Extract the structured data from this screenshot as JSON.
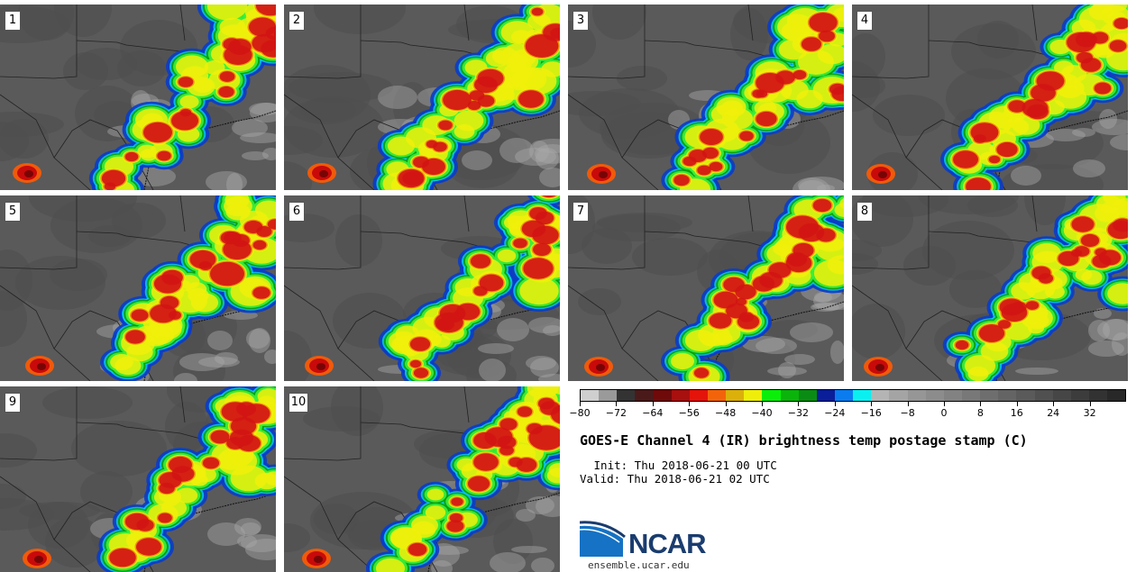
{
  "panels": [
    {
      "label": "1"
    },
    {
      "label": "2"
    },
    {
      "label": "3"
    },
    {
      "label": "4"
    },
    {
      "label": "5"
    },
    {
      "label": "6"
    },
    {
      "label": "7"
    },
    {
      "label": "8"
    },
    {
      "label": "9"
    },
    {
      "label": "10"
    }
  ],
  "colorbar": {
    "colors": [
      "#cfcfcf",
      "#9a9a9a",
      "#333333",
      "#4a1a1a",
      "#6e0a0a",
      "#a80f0f",
      "#e4140a",
      "#f3640a",
      "#dcb00a",
      "#eeee0a",
      "#0aee0a",
      "#0ab40a",
      "#0a8c14",
      "#0a1e9a",
      "#0a7cf0",
      "#0af0f0",
      "#b4b4b4",
      "#a4a4a4",
      "#969696",
      "#8c8c8c",
      "#828282",
      "#787878",
      "#6e6e6e",
      "#646464",
      "#5a5a5a",
      "#505050",
      "#464646",
      "#3c3c3c",
      "#323232",
      "#282828"
    ],
    "tick_labels": [
      "−80",
      "−72",
      "−64",
      "−56",
      "−48",
      "−40",
      "−32",
      "−24",
      "−16",
      "−8",
      "0",
      "8",
      "16",
      "24",
      "32"
    ],
    "min": -80,
    "max": 40
  },
  "title": "GOES-E Channel 4 (IR) brightness temp postage stamp (C)",
  "init": " Init: Thu 2018-06-21 00 UTC",
  "valid": "Valid: Thu 2018-06-21 02 UTC",
  "logo": {
    "text": "NCAR",
    "url": "ensemble.ucar.edu"
  }
}
